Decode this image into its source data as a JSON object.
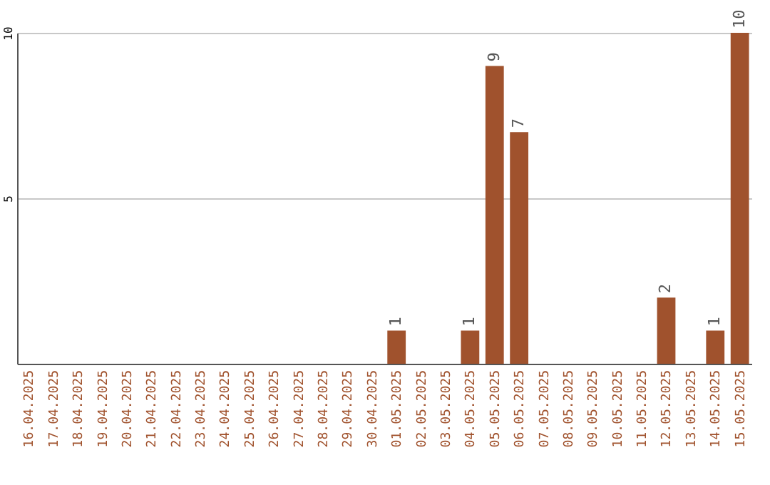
{
  "chart_data": {
    "type": "bar",
    "categories": [
      "16.04.2025",
      "17.04.2025",
      "18.04.2025",
      "19.04.2025",
      "20.04.2025",
      "21.04.2025",
      "22.04.2025",
      "23.04.2025",
      "24.04.2025",
      "25.04.2025",
      "26.04.2025",
      "27.04.2025",
      "28.04.2025",
      "29.04.2025",
      "30.04.2025",
      "01.05.2025",
      "02.05.2025",
      "03.05.2025",
      "04.05.2025",
      "05.05.2025",
      "06.05.2025",
      "07.05.2025",
      "08.05.2025",
      "09.05.2025",
      "10.05.2025",
      "11.05.2025",
      "12.05.2025",
      "13.05.2025",
      "14.05.2025",
      "15.05.2025"
    ],
    "values": [
      0,
      0,
      0,
      0,
      0,
      0,
      0,
      0,
      0,
      0,
      0,
      0,
      0,
      0,
      0,
      1,
      0,
      0,
      1,
      9,
      7,
      0,
      0,
      0,
      0,
      0,
      2,
      0,
      1,
      10
    ],
    "value_labels": [
      null,
      null,
      null,
      null,
      null,
      null,
      null,
      null,
      null,
      null,
      null,
      null,
      null,
      null,
      null,
      "1",
      null,
      null,
      "1",
      "9",
      "7",
      null,
      null,
      null,
      null,
      null,
      "2",
      null,
      "1",
      "10"
    ],
    "color": "#a0522d",
    "ylim": [
      0,
      10
    ],
    "yticks": [
      5,
      10
    ],
    "grid": "y"
  }
}
